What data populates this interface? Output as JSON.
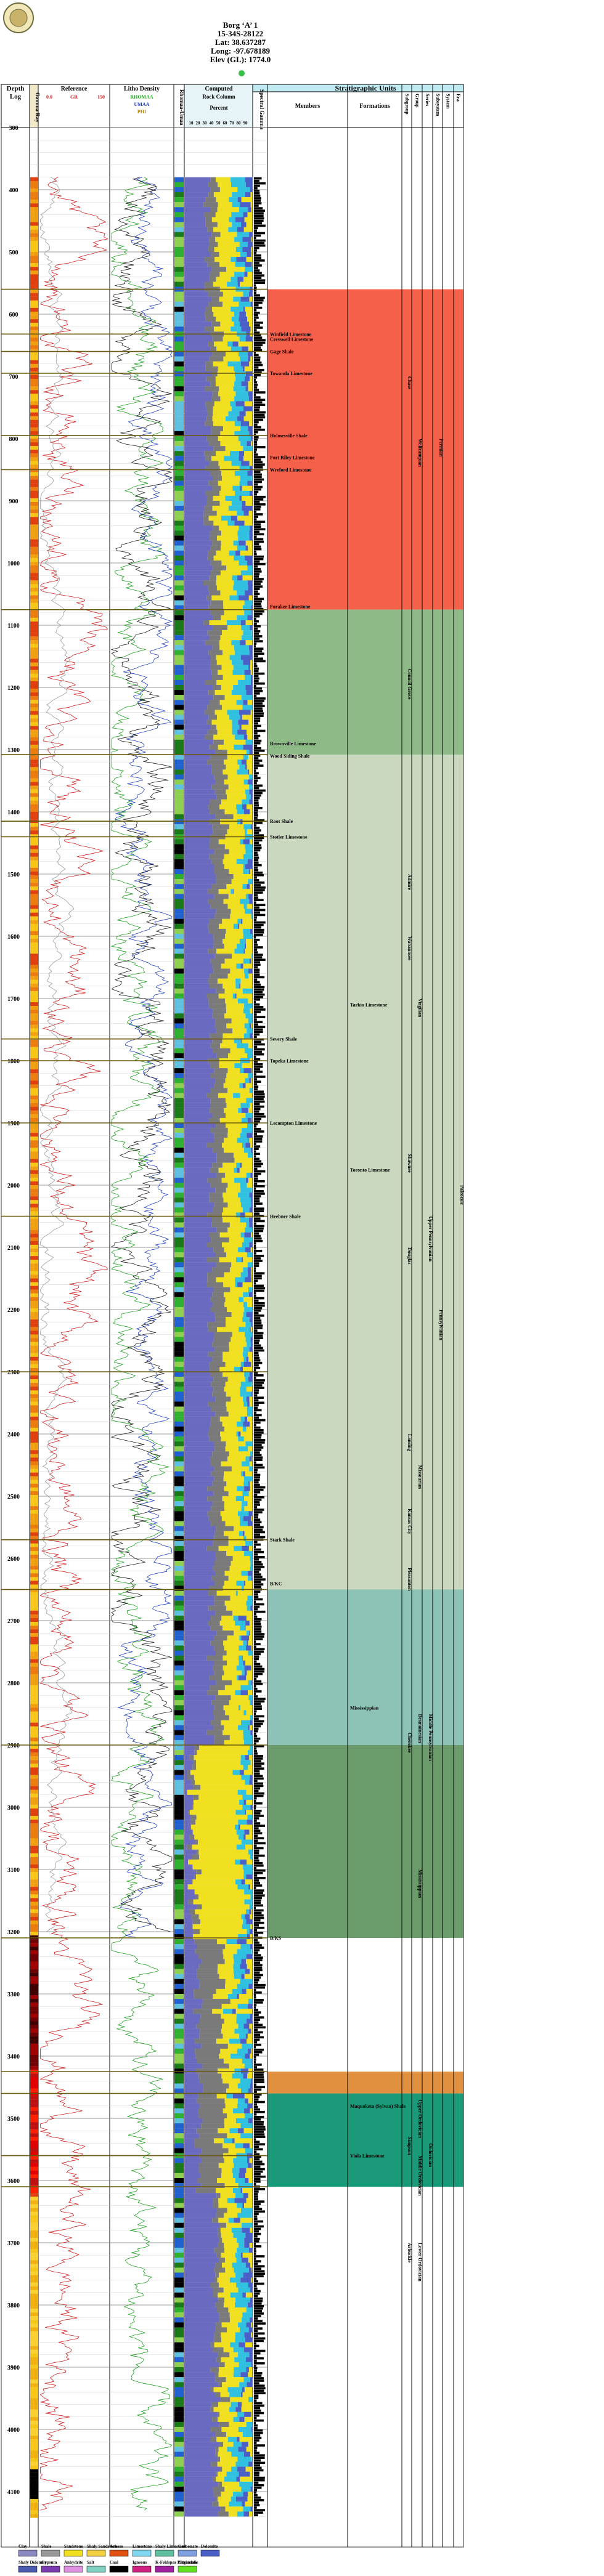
{
  "well": {
    "name": "Borg ‘A’ 1",
    "location": "15-34S-28122",
    "lat": "Lat: 38.637287",
    "long": "Long: -97.678189",
    "elev": "Elev (GL): 1774.0"
  },
  "columns": {
    "depth": "Depth",
    "log": "Log",
    "gamma": "Gamma Ray",
    "resistivity": "Reference",
    "res_gr": "GR",
    "res_scale_lo": "0.0",
    "res_scale_hi": "150",
    "litho": "Litho Density",
    "rhomaa": "RHOMAA",
    "umaa": "UMAA",
    "phi": "PHI",
    "litho_col": "Rhomaa-Umaa",
    "lith_title": "Computed",
    "lith_sub": "Rock Column",
    "lith_pct": "Percent",
    "lith_ticks": [
      "10",
      "20",
      "30",
      "40",
      "50",
      "60",
      "70",
      "80",
      "90"
    ],
    "spectral": "Spectral Gamma",
    "strat_title": "Stratigraphic Units",
    "members": "Members",
    "formations": "Formations",
    "groups": [
      "Subgroup",
      "Group",
      "Series",
      "Subsystem",
      "System",
      "Era"
    ]
  },
  "depth_ticks": [
    "300",
    "400",
    "500",
    "600",
    "700",
    "800",
    "900",
    "1000",
    "1100",
    "1200",
    "1300",
    "1400",
    "1500",
    "1600",
    "1700",
    "1800",
    "1900",
    "2000",
    "2100",
    "2200",
    "2300",
    "2400",
    "2500",
    "2600",
    "2700",
    "2800",
    "2900",
    "3000",
    "3100",
    "3200",
    "3300",
    "3400",
    "3500",
    "3600",
    "3700",
    "3800",
    "3900",
    "4000",
    "4100"
  ],
  "members": [
    {
      "label": "Winfield Limestone",
      "depth": 632
    },
    {
      "label": "Cresswell Limestone",
      "depth": 640
    },
    {
      "label": "Gage Shale",
      "depth": 660
    },
    {
      "label": "Towanda Limestone",
      "depth": 695
    },
    {
      "label": "Holmesville Shale",
      "depth": 795
    },
    {
      "label": "Fort Riley Limestone",
      "depth": 830
    },
    {
      "label": "Wreford Limestone",
      "depth": 850
    },
    {
      "label": "Foraker Limestone",
      "depth": 1070
    },
    {
      "label": "Brownville Limestone",
      "depth": 1290
    },
    {
      "label": "Wood Siding Shale",
      "depth": 1310
    },
    {
      "label": "Root Shale",
      "depth": 1415
    },
    {
      "label": "Stotler Limestone",
      "depth": 1440
    },
    {
      "label": "Severy Shale",
      "depth": 1765
    },
    {
      "label": "Topeka Limestone",
      "depth": 1800
    },
    {
      "label": "Lecompton Limestone",
      "depth": 1900
    },
    {
      "label": "Heebner Shale",
      "depth": 2050
    },
    {
      "label": "Stark Shale",
      "depth": 2570
    },
    {
      "label": "B/KC",
      "depth": 2640
    },
    {
      "label": "B/KS",
      "depth": 3210
    }
  ],
  "formations": [
    {
      "label": "Tarkio Limestone",
      "depth": 1710
    },
    {
      "label": "Toronto Limestone",
      "depth": 1975
    },
    {
      "label": "Mississippian",
      "depth": 2840
    },
    {
      "label": "Maquoketa (Sylvan) Shale",
      "depth": 3480
    },
    {
      "label": "Viola Limestone",
      "depth": 3560
    }
  ],
  "subgroups": [
    {
      "label": "Chase",
      "depth": 700
    },
    {
      "label": "Council Grove",
      "depth": 1170
    },
    {
      "label": "Admire",
      "depth": 1500
    },
    {
      "label": "Wabaunsee",
      "depth": 1600
    },
    {
      "label": "Shawnee",
      "depth": 1950
    },
    {
      "label": "Douglas",
      "depth": 2100
    },
    {
      "label": "Lansing",
      "depth": 2400
    },
    {
      "label": "Kansas City",
      "depth": 2520
    },
    {
      "label": "Pleasanton",
      "depth": 2615
    },
    {
      "label": "Cherokee",
      "depth": 2880
    },
    {
      "label": "Simpson",
      "depth": 3530
    },
    {
      "label": "Arbuckle",
      "depth": 3700
    }
  ],
  "groups": [
    {
      "label": "Wolfcampian",
      "depth": 800
    },
    {
      "label": "Virgilian",
      "depth": 1700
    },
    {
      "label": "Missourian",
      "depth": 2450
    },
    {
      "label": "Desmoinesian",
      "depth": 2850
    },
    {
      "label": "Mississippian",
      "depth": 3100
    },
    {
      "label": "Upper Ordovician",
      "depth": 3470
    },
    {
      "label": "Middle Ordovician",
      "depth": 3560
    },
    {
      "label": "Lower Ordovician",
      "depth": 3700
    }
  ],
  "series": [
    {
      "label": "Upper Pennsylvanian",
      "depth": 2050
    },
    {
      "label": "Middle Pennsylvanian",
      "depth": 2850
    },
    {
      "label": "Ordovician",
      "depth": 3540
    }
  ],
  "systems": [
    {
      "label": "Permian",
      "depth": 800
    },
    {
      "label": "Pennsylvanian",
      "depth": 2200
    },
    {
      "label": "Paleozoic",
      "depth": 2000
    }
  ],
  "legend": {
    "row1": [
      "Clay",
      "Shale",
      "Sandstone",
      "Shaly Sandstone",
      "Arkose",
      "Limestone",
      "Shaly Limestone",
      "Carbonate",
      "Dolomite"
    ],
    "row2": [
      "Shaly Dolomite",
      "Gypsum",
      "Anhydrite",
      "Salt",
      "Coal",
      "Igneous",
      "K-Feldspar Plagioclase",
      "Ultramafic"
    ]
  },
  "colors": {
    "permian": "#f4604a",
    "council": "#8dba86",
    "penn_upper": "#c9d8be",
    "penn_mid": "#8cc3b6",
    "miss": "#6b9a6b",
    "ord_upper": "#e0903e",
    "ord_mid": "#1a9a78",
    "header_blue": "#bfeaf2",
    "gr_red": "#d02020",
    "rho_green": "#20a020",
    "umaa_blue": "#2040c0"
  }
}
